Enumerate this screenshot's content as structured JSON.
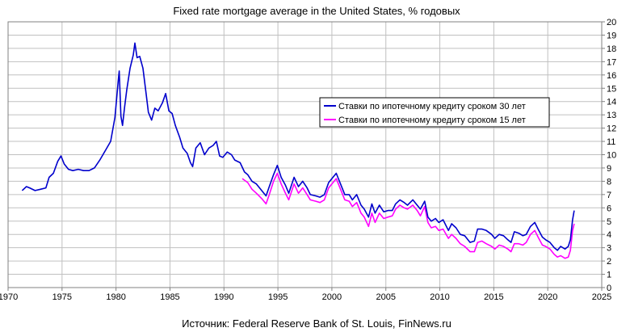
{
  "chart_data": {
    "type": "line",
    "title": "Fixed rate mortgage average in the United States, % годовых",
    "xlabel": "",
    "ylabel": "",
    "xlim": [
      1970,
      2025
    ],
    "ylim": [
      0,
      20
    ],
    "x_ticks": [
      1970,
      1975,
      1980,
      1985,
      1990,
      1995,
      2000,
      2005,
      2010,
      2015,
      2020,
      2025
    ],
    "y_ticks": [
      0,
      1,
      2,
      3,
      4,
      5,
      6,
      7,
      8,
      9,
      10,
      11,
      12,
      13,
      14,
      15,
      16,
      17,
      18,
      19,
      20
    ],
    "y_axis_side": "right",
    "grid": true,
    "legend_position": "center-right",
    "series": [
      {
        "name": "Ставки по ипотечному кредиту сроком 30 лет",
        "color": "#0000cc",
        "points": [
          [
            1971.3,
            7.3
          ],
          [
            1971.7,
            7.6
          ],
          [
            1972.0,
            7.5
          ],
          [
            1972.5,
            7.3
          ],
          [
            1973.0,
            7.4
          ],
          [
            1973.5,
            7.5
          ],
          [
            1973.8,
            8.3
          ],
          [
            1974.2,
            8.6
          ],
          [
            1974.6,
            9.5
          ],
          [
            1974.9,
            9.9
          ],
          [
            1975.2,
            9.3
          ],
          [
            1975.6,
            8.9
          ],
          [
            1976.0,
            8.8
          ],
          [
            1976.5,
            8.9
          ],
          [
            1977.0,
            8.8
          ],
          [
            1977.5,
            8.8
          ],
          [
            1978.0,
            9.0
          ],
          [
            1978.5,
            9.6
          ],
          [
            1979.0,
            10.3
          ],
          [
            1979.5,
            11.0
          ],
          [
            1979.9,
            12.8
          ],
          [
            1980.2,
            15.5
          ],
          [
            1980.3,
            16.3
          ],
          [
            1980.45,
            12.9
          ],
          [
            1980.6,
            12.2
          ],
          [
            1980.8,
            13.6
          ],
          [
            1981.0,
            14.9
          ],
          [
            1981.3,
            16.5
          ],
          [
            1981.6,
            17.5
          ],
          [
            1981.75,
            18.4
          ],
          [
            1981.95,
            17.3
          ],
          [
            1982.2,
            17.4
          ],
          [
            1982.5,
            16.5
          ],
          [
            1982.8,
            14.5
          ],
          [
            1983.0,
            13.2
          ],
          [
            1983.3,
            12.6
          ],
          [
            1983.6,
            13.5
          ],
          [
            1983.9,
            13.3
          ],
          [
            1984.3,
            13.9
          ],
          [
            1984.6,
            14.6
          ],
          [
            1984.9,
            13.3
          ],
          [
            1985.2,
            13.1
          ],
          [
            1985.5,
            12.2
          ],
          [
            1985.9,
            11.3
          ],
          [
            1986.2,
            10.5
          ],
          [
            1986.6,
            10.1
          ],
          [
            1986.9,
            9.4
          ],
          [
            1987.1,
            9.1
          ],
          [
            1987.4,
            10.5
          ],
          [
            1987.8,
            10.9
          ],
          [
            1988.2,
            10.0
          ],
          [
            1988.6,
            10.5
          ],
          [
            1989.0,
            10.7
          ],
          [
            1989.3,
            11.0
          ],
          [
            1989.6,
            9.9
          ],
          [
            1989.9,
            9.8
          ],
          [
            1990.3,
            10.2
          ],
          [
            1990.7,
            10.0
          ],
          [
            1991.0,
            9.6
          ],
          [
            1991.5,
            9.4
          ],
          [
            1991.9,
            8.7
          ],
          [
            1992.2,
            8.5
          ],
          [
            1992.6,
            8.0
          ],
          [
            1993.0,
            7.8
          ],
          [
            1993.5,
            7.3
          ],
          [
            1993.9,
            6.9
          ],
          [
            1994.2,
            7.6
          ],
          [
            1994.6,
            8.5
          ],
          [
            1994.95,
            9.2
          ],
          [
            1995.3,
            8.3
          ],
          [
            1995.7,
            7.7
          ],
          [
            1996.0,
            7.1
          ],
          [
            1996.5,
            8.3
          ],
          [
            1996.9,
            7.6
          ],
          [
            1997.3,
            8.0
          ],
          [
            1997.7,
            7.5
          ],
          [
            1998.0,
            7.0
          ],
          [
            1998.5,
            6.9
          ],
          [
            1998.9,
            6.8
          ],
          [
            1999.3,
            7.0
          ],
          [
            1999.7,
            7.9
          ],
          [
            2000.0,
            8.2
          ],
          [
            2000.4,
            8.6
          ],
          [
            2000.8,
            7.8
          ],
          [
            2001.2,
            7.0
          ],
          [
            2001.6,
            7.0
          ],
          [
            2001.9,
            6.6
          ],
          [
            2002.3,
            7.0
          ],
          [
            2002.7,
            6.2
          ],
          [
            2003.0,
            5.9
          ],
          [
            2003.4,
            5.3
          ],
          [
            2003.7,
            6.3
          ],
          [
            2004.0,
            5.6
          ],
          [
            2004.4,
            6.2
          ],
          [
            2004.8,
            5.7
          ],
          [
            2005.2,
            5.8
          ],
          [
            2005.6,
            5.8
          ],
          [
            2005.9,
            6.3
          ],
          [
            2006.3,
            6.6
          ],
          [
            2006.7,
            6.4
          ],
          [
            2007.0,
            6.2
          ],
          [
            2007.5,
            6.6
          ],
          [
            2007.9,
            6.2
          ],
          [
            2008.2,
            5.9
          ],
          [
            2008.6,
            6.5
          ],
          [
            2008.9,
            5.3
          ],
          [
            2009.2,
            5.0
          ],
          [
            2009.6,
            5.2
          ],
          [
            2009.9,
            4.9
          ],
          [
            2010.3,
            5.1
          ],
          [
            2010.8,
            4.3
          ],
          [
            2011.1,
            4.8
          ],
          [
            2011.5,
            4.5
          ],
          [
            2011.9,
            4.0
          ],
          [
            2012.3,
            3.9
          ],
          [
            2012.8,
            3.4
          ],
          [
            2013.2,
            3.5
          ],
          [
            2013.5,
            4.4
          ],
          [
            2013.9,
            4.4
          ],
          [
            2014.3,
            4.3
          ],
          [
            2014.8,
            4.0
          ],
          [
            2015.1,
            3.7
          ],
          [
            2015.5,
            4.0
          ],
          [
            2015.9,
            3.9
          ],
          [
            2016.3,
            3.6
          ],
          [
            2016.6,
            3.4
          ],
          [
            2016.9,
            4.2
          ],
          [
            2017.3,
            4.1
          ],
          [
            2017.7,
            3.9
          ],
          [
            2018.0,
            4.0
          ],
          [
            2018.4,
            4.6
          ],
          [
            2018.8,
            4.9
          ],
          [
            2019.1,
            4.4
          ],
          [
            2019.5,
            3.8
          ],
          [
            2019.8,
            3.6
          ],
          [
            2020.2,
            3.4
          ],
          [
            2020.6,
            3.0
          ],
          [
            2020.9,
            2.8
          ],
          [
            2021.2,
            3.1
          ],
          [
            2021.6,
            2.9
          ],
          [
            2021.9,
            3.1
          ],
          [
            2022.1,
            3.6
          ],
          [
            2022.3,
            5.1
          ],
          [
            2022.45,
            5.8
          ]
        ]
      },
      {
        "name": "Ставки по ипотечному кредиту сроком 15 лет",
        "color": "#ff00ff",
        "points": [
          [
            1991.7,
            8.2
          ],
          [
            1992.2,
            7.9
          ],
          [
            1992.6,
            7.4
          ],
          [
            1993.0,
            7.1
          ],
          [
            1993.5,
            6.7
          ],
          [
            1993.9,
            6.3
          ],
          [
            1994.2,
            7.0
          ],
          [
            1994.6,
            8.0
          ],
          [
            1994.95,
            8.6
          ],
          [
            1995.3,
            7.8
          ],
          [
            1995.7,
            7.1
          ],
          [
            1996.0,
            6.6
          ],
          [
            1996.5,
            7.8
          ],
          [
            1996.9,
            7.1
          ],
          [
            1997.3,
            7.5
          ],
          [
            1997.7,
            7.0
          ],
          [
            1998.0,
            6.6
          ],
          [
            1998.5,
            6.5
          ],
          [
            1998.9,
            6.4
          ],
          [
            1999.3,
            6.6
          ],
          [
            1999.7,
            7.5
          ],
          [
            2000.0,
            7.8
          ],
          [
            2000.4,
            8.2
          ],
          [
            2000.8,
            7.4
          ],
          [
            2001.2,
            6.6
          ],
          [
            2001.6,
            6.5
          ],
          [
            2001.9,
            6.1
          ],
          [
            2002.3,
            6.4
          ],
          [
            2002.7,
            5.6
          ],
          [
            2003.0,
            5.3
          ],
          [
            2003.4,
            4.6
          ],
          [
            2003.7,
            5.6
          ],
          [
            2004.0,
            4.9
          ],
          [
            2004.4,
            5.6
          ],
          [
            2004.8,
            5.2
          ],
          [
            2005.2,
            5.3
          ],
          [
            2005.6,
            5.4
          ],
          [
            2005.9,
            5.9
          ],
          [
            2006.3,
            6.2
          ],
          [
            2006.7,
            6.0
          ],
          [
            2007.0,
            5.9
          ],
          [
            2007.5,
            6.2
          ],
          [
            2007.9,
            5.8
          ],
          [
            2008.2,
            5.4
          ],
          [
            2008.6,
            6.1
          ],
          [
            2008.9,
            4.9
          ],
          [
            2009.2,
            4.5
          ],
          [
            2009.6,
            4.6
          ],
          [
            2009.9,
            4.3
          ],
          [
            2010.3,
            4.4
          ],
          [
            2010.8,
            3.7
          ],
          [
            2011.1,
            4.0
          ],
          [
            2011.5,
            3.7
          ],
          [
            2011.9,
            3.3
          ],
          [
            2012.3,
            3.1
          ],
          [
            2012.8,
            2.7
          ],
          [
            2013.2,
            2.7
          ],
          [
            2013.5,
            3.4
          ],
          [
            2013.9,
            3.5
          ],
          [
            2014.3,
            3.3
          ],
          [
            2014.8,
            3.1
          ],
          [
            2015.1,
            2.9
          ],
          [
            2015.5,
            3.2
          ],
          [
            2015.9,
            3.1
          ],
          [
            2016.3,
            2.9
          ],
          [
            2016.6,
            2.7
          ],
          [
            2016.9,
            3.3
          ],
          [
            2017.3,
            3.3
          ],
          [
            2017.7,
            3.2
          ],
          [
            2018.0,
            3.4
          ],
          [
            2018.4,
            4.0
          ],
          [
            2018.8,
            4.3
          ],
          [
            2019.1,
            3.8
          ],
          [
            2019.5,
            3.2
          ],
          [
            2019.8,
            3.1
          ],
          [
            2020.2,
            2.9
          ],
          [
            2020.6,
            2.5
          ],
          [
            2020.9,
            2.3
          ],
          [
            2021.2,
            2.4
          ],
          [
            2021.6,
            2.2
          ],
          [
            2021.9,
            2.3
          ],
          [
            2022.1,
            2.8
          ],
          [
            2022.3,
            4.3
          ],
          [
            2022.45,
            4.8
          ]
        ]
      }
    ],
    "source_note": "Источник: Federal Reserve Bank of St. Louis, FinNews.ru"
  }
}
